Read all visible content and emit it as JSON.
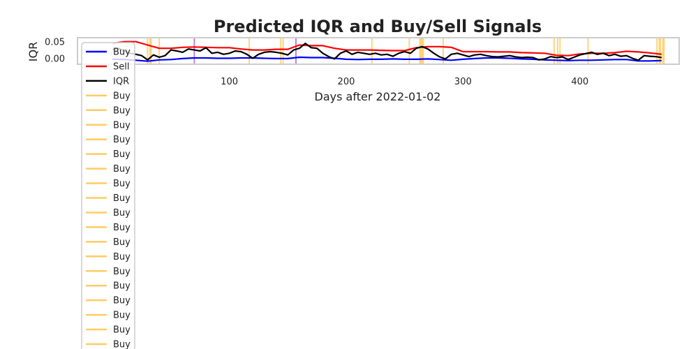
{
  "chart_data": {
    "type": "line",
    "title": "Predicted IQR and Buy/Sell Signals",
    "xlabel": "Days after 2022-01-02",
    "ylabel": "IQR",
    "xlim": [
      -30,
      485
    ],
    "ylim": [
      -0.018,
      0.062
    ],
    "x_ticks": [
      100,
      200,
      300,
      400
    ],
    "y_ticks": [
      0.05,
      0.0
    ],
    "y_tick_labels": [
      "0.05",
      "0.00"
    ],
    "grid": false,
    "legend_position": "upper left",
    "series": [
      {
        "name": "Buy",
        "color": "#0000ff",
        "x": [
          0,
          10,
          20,
          30,
          40,
          50,
          60,
          70,
          80,
          90,
          100,
          110,
          120,
          130,
          140,
          150,
          160,
          170,
          180,
          190,
          200,
          210,
          220,
          230,
          240,
          250,
          260,
          270,
          280,
          290,
          300,
          310,
          320,
          330,
          340,
          350,
          360,
          370,
          380,
          390,
          400,
          410,
          420,
          430,
          440,
          450,
          460,
          470
        ],
        "values": [
          -0.003,
          -0.004,
          -0.006,
          -0.009,
          -0.005,
          -0.004,
          -0.001,
          0.001,
          0.001,
          0.0,
          0.0,
          0.001,
          0.001,
          0.0,
          -0.001,
          -0.001,
          0.003,
          0.002,
          0.002,
          0.0,
          -0.003,
          -0.004,
          -0.003,
          -0.003,
          -0.002,
          -0.003,
          -0.003,
          -0.002,
          -0.004,
          -0.006,
          -0.003,
          -0.001,
          0.001,
          0.001,
          0.0,
          -0.002,
          -0.003,
          -0.005,
          -0.006,
          -0.007,
          -0.006,
          -0.006,
          -0.005,
          -0.004,
          -0.004,
          -0.008,
          -0.008,
          -0.007
        ]
      },
      {
        "name": "Sell",
        "color": "#ff0000",
        "x": [
          0,
          10,
          20,
          30,
          40,
          50,
          60,
          70,
          80,
          90,
          100,
          110,
          120,
          130,
          140,
          150,
          160,
          170,
          180,
          190,
          200,
          210,
          220,
          230,
          240,
          250,
          260,
          270,
          280,
          290,
          300,
          310,
          320,
          330,
          340,
          350,
          360,
          370,
          380,
          390,
          400,
          410,
          420,
          430,
          440,
          450,
          460,
          470
        ],
        "values": [
          0.045,
          0.05,
          0.05,
          0.04,
          0.03,
          0.03,
          0.033,
          0.034,
          0.033,
          0.032,
          0.032,
          0.028,
          0.025,
          0.025,
          0.027,
          0.027,
          0.04,
          0.038,
          0.038,
          0.03,
          0.025,
          0.025,
          0.025,
          0.024,
          0.023,
          0.023,
          0.032,
          0.035,
          0.035,
          0.033,
          0.02,
          0.02,
          0.02,
          0.019,
          0.019,
          0.017,
          0.016,
          0.015,
          0.009,
          0.008,
          0.013,
          0.015,
          0.015,
          0.017,
          0.021,
          0.019,
          0.016,
          0.012
        ]
      },
      {
        "name": "IQR",
        "color": "#000000",
        "x": [
          0,
          5,
          10,
          15,
          20,
          25,
          30,
          35,
          40,
          45,
          50,
          55,
          60,
          65,
          70,
          75,
          80,
          85,
          90,
          95,
          100,
          105,
          110,
          115,
          120,
          125,
          130,
          135,
          140,
          145,
          150,
          155,
          160,
          165,
          170,
          175,
          180,
          185,
          190,
          195,
          200,
          205,
          210,
          215,
          220,
          225,
          230,
          235,
          240,
          245,
          250,
          255,
          260,
          265,
          270,
          275,
          280,
          285,
          290,
          295,
          300,
          305,
          310,
          315,
          320,
          325,
          330,
          335,
          340,
          345,
          350,
          355,
          360,
          365,
          370,
          375,
          380,
          385,
          390,
          395,
          400,
          405,
          410,
          415,
          420,
          425,
          430,
          435,
          440,
          445,
          450,
          455,
          460,
          465,
          470
        ],
        "values": [
          0.026,
          0.03,
          0.022,
          0.015,
          0.012,
          0.008,
          -0.005,
          0.01,
          0.003,
          0.008,
          0.025,
          0.022,
          0.018,
          0.028,
          0.025,
          0.022,
          0.032,
          0.015,
          0.018,
          0.012,
          0.015,
          0.022,
          0.02,
          0.012,
          0.0,
          0.012,
          0.018,
          0.02,
          0.018,
          0.015,
          0.01,
          0.025,
          0.03,
          0.045,
          0.032,
          0.03,
          0.015,
          0.005,
          -0.002,
          0.015,
          0.022,
          0.012,
          0.018,
          0.015,
          0.012,
          0.015,
          0.01,
          0.012,
          0.006,
          0.015,
          0.02,
          0.015,
          0.03,
          0.035,
          0.028,
          0.015,
          0.004,
          -0.002,
          0.012,
          0.015,
          0.01,
          0.005,
          0.01,
          0.012,
          0.008,
          0.005,
          0.004,
          0.006,
          0.008,
          0.004,
          0.002,
          0.003,
          0.002,
          -0.005,
          -0.002,
          0.005,
          0.002,
          0.004,
          -0.004,
          0.003,
          0.01,
          0.014,
          0.018,
          0.012,
          0.015,
          0.008,
          0.012,
          0.006,
          0.008,
          0.0,
          -0.006,
          0.008,
          0.006,
          0.005,
          0.002
        ]
      }
    ],
    "signal_lines": [
      {
        "name": "Buy",
        "color": "#ffcc66",
        "x": [
          30,
          32,
          33,
          40,
          117,
          144,
          146,
          222,
          254,
          263,
          264,
          265,
          266,
          283,
          378,
          381,
          383,
          407,
          466,
          468,
          469,
          471,
          472
        ]
      },
      {
        "name": "Sell",
        "color": "#b070d0",
        "x": [
          70,
          157
        ]
      }
    ],
    "legend_entries": [
      {
        "label": "Buy",
        "color": "#0000ff"
      },
      {
        "label": "Sell",
        "color": "#ff0000"
      },
      {
        "label": "IQR",
        "color": "#000000"
      },
      {
        "label": "Buy",
        "color": "#ffcc66"
      },
      {
        "label": "Buy",
        "color": "#ffcc66"
      },
      {
        "label": "Buy",
        "color": "#ffcc66"
      },
      {
        "label": "Buy",
        "color": "#ffcc66"
      },
      {
        "label": "Buy",
        "color": "#ffcc66"
      },
      {
        "label": "Buy",
        "color": "#ffcc66"
      },
      {
        "label": "Buy",
        "color": "#ffcc66"
      },
      {
        "label": "Buy",
        "color": "#ffcc66"
      },
      {
        "label": "Buy",
        "color": "#ffcc66"
      },
      {
        "label": "Buy",
        "color": "#ffcc66"
      },
      {
        "label": "Buy",
        "color": "#ffcc66"
      },
      {
        "label": "Buy",
        "color": "#ffcc66"
      },
      {
        "label": "Buy",
        "color": "#ffcc66"
      },
      {
        "label": "Buy",
        "color": "#ffcc66"
      },
      {
        "label": "Buy",
        "color": "#ffcc66"
      },
      {
        "label": "Buy",
        "color": "#ffcc66"
      },
      {
        "label": "Buy",
        "color": "#ffcc66"
      },
      {
        "label": "Buy",
        "color": "#ffcc66"
      }
    ]
  }
}
